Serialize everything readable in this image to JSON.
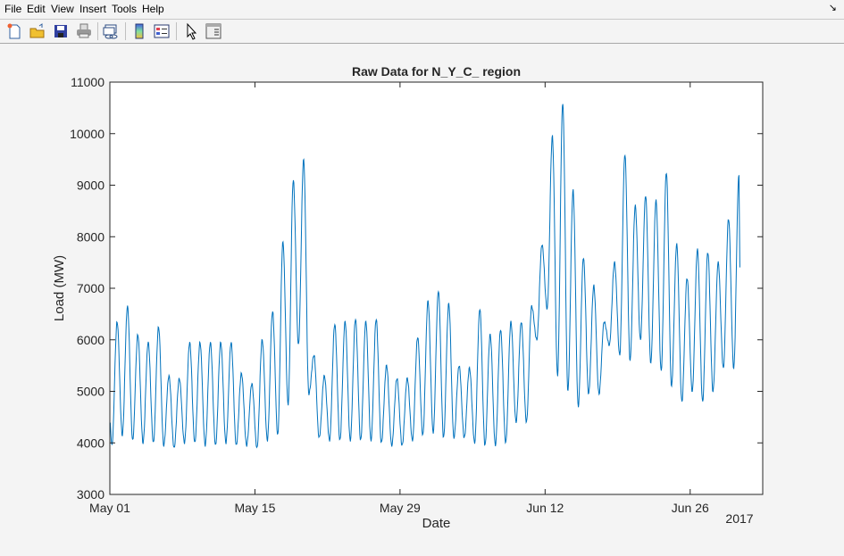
{
  "menu": [
    "File",
    "Edit",
    "View",
    "Insert",
    "Tools",
    "Help"
  ],
  "toolbar": {
    "icons": [
      "new-figure-icon",
      "open-file-icon",
      "save-icon",
      "print-icon",
      "link-plot-icon",
      "colorbar-icon",
      "legend-icon",
      "pointer-icon",
      "property-inspector-icon"
    ]
  },
  "chart_data": {
    "type": "line",
    "title": "Raw Data for N_Y_C_ region",
    "xlabel": "Date",
    "ylabel": "Load (MW)",
    "x_year_label": "2017",
    "x_start": "2017-05-01",
    "x_end": "2017-07-03",
    "x_resolution": "hourly",
    "xticks": [
      {
        "date": "2017-05-01",
        "label": "May 01"
      },
      {
        "date": "2017-05-15",
        "label": "May 15"
      },
      {
        "date": "2017-05-29",
        "label": "May 29"
      },
      {
        "date": "2017-06-12",
        "label": "Jun 12"
      },
      {
        "date": "2017-06-26",
        "label": "Jun 26"
      }
    ],
    "ylim": [
      3000,
      11000
    ],
    "yticks": [
      "3000",
      "4000",
      "5000",
      "6000",
      "7000",
      "8000",
      "9000",
      "10000",
      "11000"
    ],
    "grid": false,
    "color": "#0072BD",
    "series_start_value": 4400,
    "series_end_value": 7400,
    "daily_peaks": [
      6350,
      6650,
      6100,
      5950,
      6250,
      5300,
      5250,
      5950,
      5950,
      5950,
      5950,
      5950,
      5350,
      5150,
      6000,
      6550,
      7900,
      9100,
      9500,
      5700,
      5300,
      6300,
      6350,
      6400,
      6350,
      6400,
      5500,
      5250,
      5250,
      6050,
      6750,
      6950,
      6700,
      5500,
      5450,
      6600,
      6100,
      6200,
      6350,
      6350,
      6650,
      7850,
      9950,
      10600,
      8900,
      7600,
      7050,
      6350,
      7500,
      9600,
      8600,
      8800,
      8700,
      9250,
      7850,
      7200,
      7750,
      7700,
      7500,
      8350,
      9200
    ],
    "daily_troughs": [
      3950,
      4150,
      4050,
      4000,
      4000,
      3950,
      3900,
      4000,
      4000,
      3950,
      3950,
      4000,
      3950,
      3950,
      3900,
      4050,
      4150,
      4750,
      5900,
      4950,
      4100,
      4050,
      4050,
      4050,
      4050,
      4050,
      4000,
      3950,
      3950,
      4050,
      4150,
      4200,
      4100,
      4100,
      4100,
      4000,
      3950,
      3950,
      4000,
      4400,
      4400,
      6000,
      6600,
      5300,
      5000,
      4700,
      4950,
      4950,
      5900,
      5700,
      5600,
      6000,
      5550,
      5400,
      5100,
      4800,
      5000,
      4800,
      5000,
      5450,
      5450
    ]
  }
}
